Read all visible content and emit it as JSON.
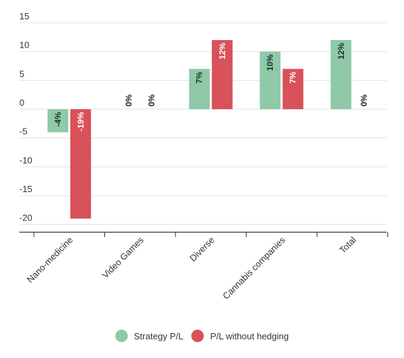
{
  "chart_data": {
    "type": "bar",
    "categories": [
      "Nano-medicine",
      "Video Games",
      "Diverse",
      "Cannabis companies",
      "Total"
    ],
    "series": [
      {
        "name": "Strategy P/L",
        "values": [
          -4,
          0,
          7,
          10,
          12
        ],
        "labels": [
          "-4%",
          "0%",
          "7%",
          "10%",
          "12%"
        ],
        "color": "#8fc9a8"
      },
      {
        "name": "P/L without hedging",
        "values": [
          -19,
          0,
          12,
          7,
          0
        ],
        "labels": [
          "-19%",
          "0%",
          "12%",
          "7%",
          "0%"
        ],
        "color": "#d9515a"
      }
    ],
    "yticks": [
      "15",
      "10",
      "5",
      "0",
      "-5",
      "-10",
      "-15",
      "-20"
    ],
    "ylim": [
      -21,
      15
    ],
    "grid": true,
    "legend_position": "bottom-center",
    "title": "",
    "xlabel": "",
    "ylabel": ""
  }
}
